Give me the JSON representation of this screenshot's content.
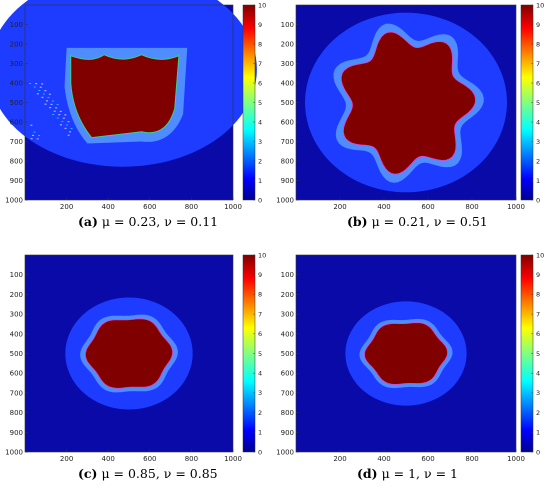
{
  "chart_data": [
    {
      "type": "heatmap",
      "panel_label": "(a)",
      "caption": "μ = 0.23, ν = 0.11",
      "colorbar_range": [
        0,
        10
      ],
      "colorbar_ticks": [
        "0",
        "1",
        "2",
        "3",
        "4",
        "5",
        "6",
        "7",
        "8",
        "9",
        "10"
      ],
      "xticks": [
        "200",
        "400",
        "600",
        "800",
        "1000"
      ],
      "yticks": [
        "100",
        "200",
        "300",
        "400",
        "500",
        "600",
        "700",
        "800",
        "900",
        "1000"
      ],
      "xlim": [
        0,
        1000
      ],
      "ylim": [
        0,
        1000
      ],
      "interior_value": 10,
      "halo_value": 1.5,
      "background_value": 0.8
    },
    {
      "type": "heatmap",
      "panel_label": "(b)",
      "caption": "μ = 0.21, ν = 0.51",
      "colorbar_range": [
        0,
        10
      ],
      "colorbar_ticks": [
        "0",
        "1",
        "2",
        "3",
        "4",
        "5",
        "6",
        "7",
        "8",
        "9",
        "10"
      ],
      "xticks": [
        "200",
        "400",
        "600",
        "800",
        "1000"
      ],
      "yticks": [
        "100",
        "200",
        "300",
        "400",
        "500",
        "600",
        "700",
        "800",
        "900",
        "1000"
      ],
      "xlim": [
        0,
        1000
      ],
      "ylim": [
        0,
        1000
      ],
      "interior_value": 10,
      "halo_value": 1.5,
      "background_value": 0.5
    },
    {
      "type": "heatmap",
      "panel_label": "(c)",
      "caption": "μ = 0.85, ν = 0.85",
      "colorbar_range": [
        0,
        10
      ],
      "colorbar_ticks": [
        "0",
        "1",
        "2",
        "3",
        "4",
        "5",
        "6",
        "7",
        "8",
        "9",
        "10"
      ],
      "xticks": [
        "200",
        "400",
        "600",
        "800",
        "1000"
      ],
      "yticks": [
        "100",
        "200",
        "300",
        "400",
        "500",
        "600",
        "700",
        "800",
        "900",
        "1000"
      ],
      "xlim": [
        0,
        1000
      ],
      "ylim": [
        0,
        1000
      ],
      "interior_value": 10,
      "halo_value": 1.5,
      "background_value": 0.5
    },
    {
      "type": "heatmap",
      "panel_label": "(d)",
      "caption": "μ = 1, ν = 1",
      "colorbar_range": [
        0,
        10
      ],
      "colorbar_ticks": [
        "0",
        "1",
        "2",
        "3",
        "4",
        "5",
        "6",
        "7",
        "8",
        "9",
        "10"
      ],
      "xticks": [
        "200",
        "400",
        "600",
        "800",
        "1000"
      ],
      "yticks": [
        "100",
        "200",
        "300",
        "400",
        "500",
        "600",
        "700",
        "800",
        "900",
        "1000"
      ],
      "xlim": [
        0,
        1000
      ],
      "ylim": [
        0,
        1000
      ],
      "interior_value": 10,
      "halo_value": 1.5,
      "background_value": 0.5
    }
  ],
  "colors": {
    "jet_stops": [
      "#00008f",
      "#0000ff",
      "#0080ff",
      "#00ffff",
      "#80ff80",
      "#ffff00",
      "#ff8000",
      "#ff0000",
      "#800000"
    ],
    "interior": "#800000",
    "halo": "#1e3cff",
    "background": "#0a0aa8"
  }
}
